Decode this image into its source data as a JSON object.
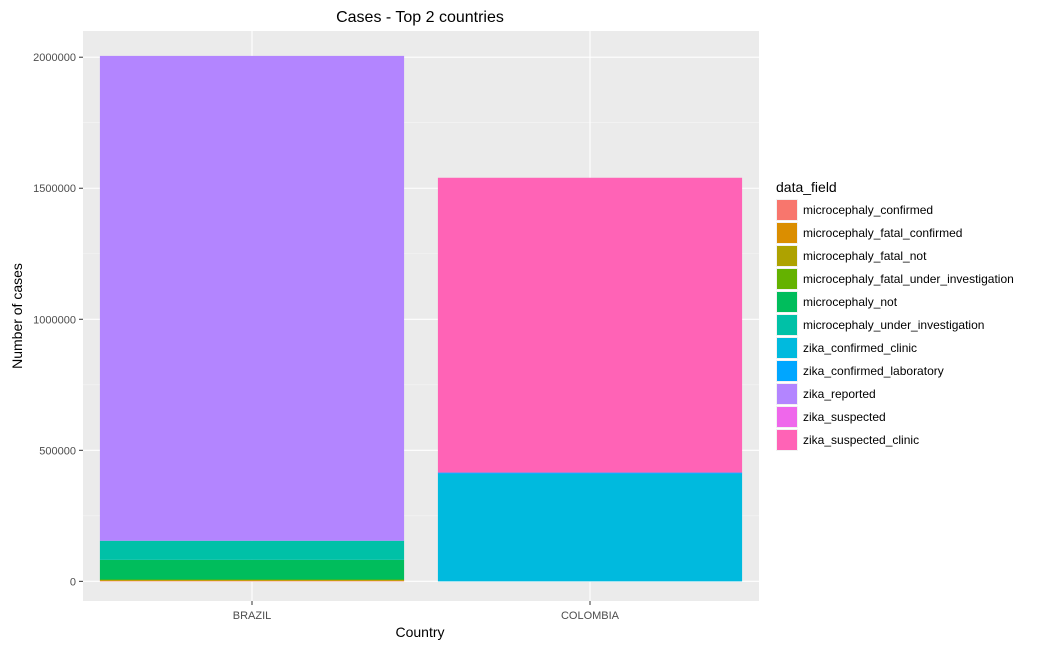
{
  "chart_data": {
    "type": "bar",
    "stacked": true,
    "title": "Cases - Top 2 countries",
    "xlabel": "Country",
    "ylabel": "Number of cases",
    "ylim": [
      -75000,
      2100000
    ],
    "yticks": [
      0,
      500000,
      1000000,
      1500000,
      2000000
    ],
    "ytick_labels": [
      "0",
      "500000",
      "1000000",
      "1500000",
      "2000000"
    ],
    "grid": true,
    "legend_position": "right",
    "legend_title": "data_field",
    "categories": [
      "BRAZIL",
      "COLOMBIA"
    ],
    "series": [
      {
        "name": "microcephaly_confirmed",
        "color": "#F8766D",
        "values": [
          2000,
          0
        ]
      },
      {
        "name": "microcephaly_fatal_confirmed",
        "color": "#DB8E00",
        "values": [
          1000,
          0
        ]
      },
      {
        "name": "microcephaly_fatal_not",
        "color": "#AEA200",
        "values": [
          2000,
          0
        ]
      },
      {
        "name": "microcephaly_fatal_under_investigation",
        "color": "#64B200",
        "values": [
          2000,
          0
        ]
      },
      {
        "name": "microcephaly_not",
        "color": "#00BD5C",
        "values": [
          75000,
          0
        ]
      },
      {
        "name": "microcephaly_under_investigation",
        "color": "#00C1A7",
        "values": [
          73000,
          0
        ]
      },
      {
        "name": "zika_confirmed_clinic",
        "color": "#00BADE",
        "values": [
          0,
          410000
        ]
      },
      {
        "name": "zika_confirmed_laboratory",
        "color": "#00A6FF",
        "values": [
          0,
          5000
        ]
      },
      {
        "name": "zika_reported",
        "color": "#B385FF",
        "values": [
          1850000,
          0
        ]
      },
      {
        "name": "zika_suspected",
        "color": "#EF67EB",
        "values": [
          0,
          0
        ]
      },
      {
        "name": "zika_suspected_clinic",
        "color": "#FF63B6",
        "values": [
          0,
          1125000
        ]
      }
    ]
  }
}
